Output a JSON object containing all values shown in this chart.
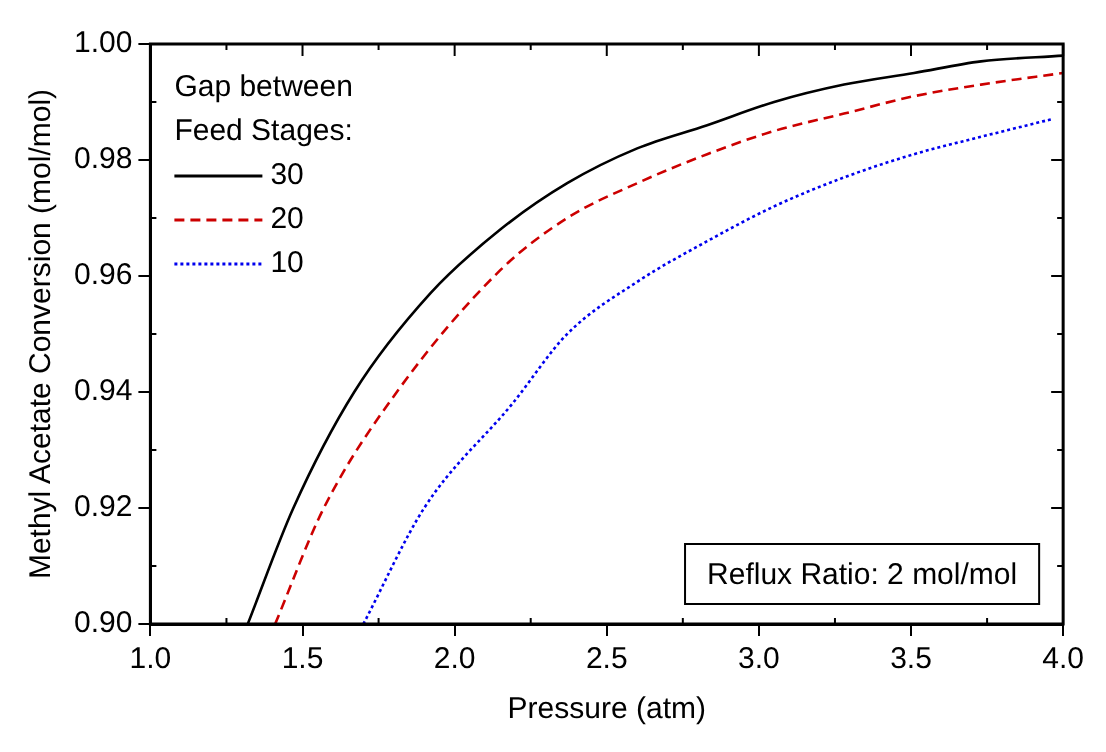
{
  "chart_data": {
    "type": "line",
    "xlabel": "Pressure (atm)",
    "ylabel": "Methyl Acetate Conversion (mol/mol)",
    "legend_title": "Gap between\nFeed Stages:",
    "legend": "top left",
    "grid": false,
    "marker": "none",
    "xlim": [
      1.0,
      4.0
    ],
    "xticks": [
      {
        "value": 1.0,
        "label": "1.0"
      },
      {
        "value": 1.5,
        "label": "1.5"
      },
      {
        "value": 2.0,
        "label": "2.0"
      },
      {
        "value": 2.5,
        "label": "2.5"
      },
      {
        "value": 3.0,
        "label": "3.0"
      },
      {
        "value": 3.5,
        "label": "3.5"
      },
      {
        "value": 4.0,
        "label": "4.0"
      }
    ],
    "ylim": [
      0.9,
      1.0
    ],
    "yticks": [
      {
        "value": 0.9,
        "label": "0.90"
      },
      {
        "value": 0.92,
        "label": "0.92"
      },
      {
        "value": 0.94,
        "label": "0.94"
      },
      {
        "value": 0.96,
        "label": "0.96"
      },
      {
        "value": 0.98,
        "label": "0.98"
      },
      {
        "value": 1.0,
        "label": "1.00"
      }
    ],
    "annotations": [
      "Reflux Ratio: 2 mol/mol"
    ],
    "series": [
      {
        "name": "30",
        "color": "#000000",
        "line_style": "solid",
        "x": [
          1.32,
          1.47,
          1.67,
          1.92,
          2.15,
          2.37,
          2.6,
          2.83,
          3.05,
          3.28,
          3.51,
          3.73,
          4.0
        ],
        "values": [
          0.9,
          0.92,
          0.94,
          0.957,
          0.968,
          0.976,
          0.982,
          0.986,
          0.99,
          0.993,
          0.995,
          0.997,
          0.998
        ]
      },
      {
        "name": "20",
        "color": "#cc0000",
        "line_style": "dashed",
        "x": [
          1.41,
          1.57,
          1.81,
          2.15,
          2.37,
          2.6,
          2.83,
          3.05,
          3.28,
          3.51,
          3.73,
          4.0
        ],
        "values": [
          0.9,
          0.92,
          0.94,
          0.961,
          0.97,
          0.976,
          0.981,
          0.985,
          0.988,
          0.991,
          0.993,
          0.995
        ]
      },
      {
        "name": "10",
        "color": "#0000ee",
        "line_style": "dotted",
        "x": [
          1.7,
          1.9,
          2.19,
          2.37,
          2.6,
          2.83,
          3.05,
          3.28,
          3.51,
          3.73,
          3.96
        ],
        "values": [
          0.9,
          0.92,
          0.938,
          0.95,
          0.959,
          0.966,
          0.972,
          0.977,
          0.981,
          0.984,
          0.987
        ]
      }
    ]
  }
}
